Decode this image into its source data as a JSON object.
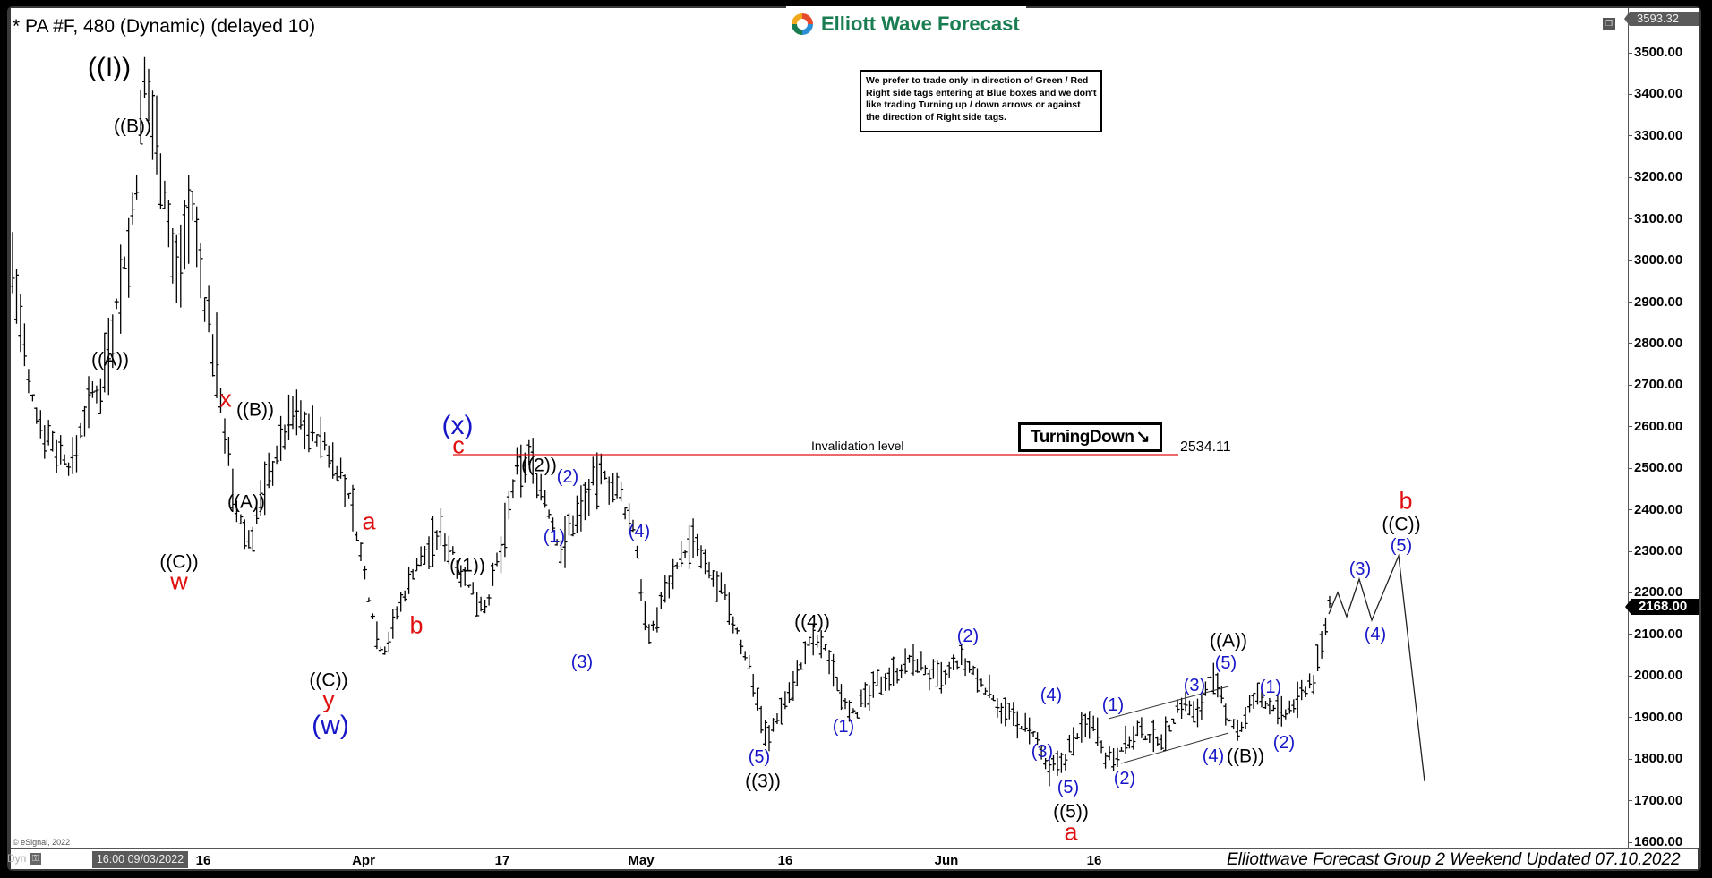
{
  "header": {
    "title": "* PA #F, 480 (Dynamic) (delayed 10)",
    "logo_text": "Elliott Wave Forecast"
  },
  "note_box": {
    "lines": [
      "We prefer to trade only in direction of Green / Red",
      "Right side tags entering at Blue boxes and we don't",
      "like trading Turning up / down arrows or against",
      "the direction of Right side tags."
    ]
  },
  "turning_badge": {
    "label": "TurningDown",
    "arrow": "↘"
  },
  "invalidation": {
    "label": "Invalidation level",
    "value": "2534.11",
    "color": "#e01010"
  },
  "price_axis": {
    "top_price": "3593.32",
    "last_price": "2168.00",
    "ticks": [
      "3500.00",
      "3400.00",
      "3300.00",
      "3200.00",
      "3100.00",
      "3000.00",
      "2900.00",
      "2800.00",
      "2700.00",
      "2600.00",
      "2500.00",
      "2400.00",
      "2300.00",
      "2200.00",
      "2100.00",
      "2000.00",
      "1900.00",
      "1800.00",
      "1700.00",
      "1600.00"
    ]
  },
  "time_axis": {
    "cursor_label": "16:00 09/03/2022",
    "ticks": [
      "16",
      "Apr",
      "17",
      "May",
      "16",
      "Jun",
      "16"
    ]
  },
  "status": {
    "dyn": "Dyn",
    "lock_icon": "lock-icon",
    "copyright": "© eSignal, 2022"
  },
  "footer": {
    "text": "Elliottwave Forecast Group 2 Weekend Updated 07.10.2022"
  },
  "colors": {
    "black_labels": "#000000",
    "blue_labels": "#1616c8",
    "red_labels": "#e01010",
    "logo_green": "#1a7d52"
  },
  "chart_data": {
    "type": "ohlc-bar",
    "title": "* PA #F, 480 (Dynamic) (delayed 10)",
    "instrument": "PA #F",
    "interval": "480",
    "xlabel": "",
    "ylabel": "",
    "ylim": [
      1600,
      3593.32
    ],
    "x_ticks": [
      "16 (Mar)",
      "Apr",
      "17 (Apr)",
      "May",
      "16 (May)",
      "Jun",
      "16 (Jun)"
    ],
    "grid": false,
    "last_price": 2168.0,
    "invalidation_level": 2534.11,
    "wave_labels": [
      {
        "label": "((I))",
        "color": "black",
        "price": 3430
      },
      {
        "label": "((B))",
        "color": "black",
        "price": 3290
      },
      {
        "label": "((A))",
        "color": "black",
        "price": 2790
      },
      {
        "label": "((C))",
        "color": "black",
        "price": 2310
      },
      {
        "label": "w",
        "color": "red",
        "price": 2310
      },
      {
        "label": "x",
        "color": "red",
        "price": 2640
      },
      {
        "label": "((B))",
        "color": "black",
        "price": 2610
      },
      {
        "label": "((A))",
        "color": "black",
        "price": 2450
      },
      {
        "label": "((C))",
        "color": "black",
        "price": 2050
      },
      {
        "label": "y",
        "color": "red",
        "price": 2050
      },
      {
        "label": "(w)",
        "color": "blue",
        "price": 2050
      },
      {
        "label": "a",
        "color": "red",
        "price": 2345
      },
      {
        "label": "b",
        "color": "red",
        "price": 2170
      },
      {
        "label": "c",
        "color": "red",
        "price": 2534
      },
      {
        "label": "(x)",
        "color": "blue",
        "price": 2534
      },
      {
        "label": "((1))",
        "color": "black",
        "price": 2300
      },
      {
        "label": "((2))",
        "color": "black",
        "price": 2490
      },
      {
        "label": "(1)",
        "color": "blue",
        "price": 2400
      },
      {
        "label": "(2)",
        "color": "blue",
        "price": 2460
      },
      {
        "label": "(3)",
        "color": "blue",
        "price": 2060
      },
      {
        "label": "(4)",
        "color": "blue",
        "price": 2320
      },
      {
        "label": "(5)",
        "color": "blue",
        "price": 1840
      },
      {
        "label": "((3))",
        "color": "black",
        "price": 1840
      },
      {
        "label": "((4))",
        "color": "black",
        "price": 2100
      },
      {
        "label": "(1)",
        "color": "blue",
        "price": 1910
      },
      {
        "label": "(2)",
        "color": "blue",
        "price": 2060
      },
      {
        "label": "(3)",
        "color": "blue",
        "price": 1880
      },
      {
        "label": "(4)",
        "color": "blue",
        "price": 1960
      },
      {
        "label": "(5)",
        "color": "blue",
        "price": 1760
      },
      {
        "label": "((5))",
        "color": "black",
        "price": 1760
      },
      {
        "label": "a",
        "color": "red",
        "price": 1760
      },
      {
        "label": "(1)",
        "color": "blue",
        "price": 1900
      },
      {
        "label": "(2)",
        "color": "blue",
        "price": 1790
      },
      {
        "label": "(3)",
        "color": "blue",
        "price": 1940
      },
      {
        "label": "(4)",
        "color": "blue",
        "price": 1840
      },
      {
        "label": "(5)",
        "color": "blue",
        "price": 2010
      },
      {
        "label": "((A))",
        "color": "black",
        "price": 2010
      },
      {
        "label": "((B))",
        "color": "black",
        "price": 1850
      },
      {
        "label": "(1)",
        "color": "blue",
        "price": 1950
      },
      {
        "label": "(2)",
        "color": "blue",
        "price": 1880
      },
      {
        "label": "(3)",
        "color": "blue",
        "price": 2230
      },
      {
        "label": "(4)",
        "color": "blue",
        "price": 2140
      },
      {
        "label": "(5)",
        "color": "blue",
        "price": 2290
      },
      {
        "label": "((C))",
        "color": "black",
        "price": 2290
      },
      {
        "label": "b",
        "color": "red",
        "price": 2290
      }
    ],
    "projection_path": [
      {
        "step": "start",
        "price": 2168
      },
      {
        "step": "(3)",
        "price": 2230
      },
      {
        "step": "(4)",
        "price": 2140
      },
      {
        "step": "(5) / ((C)) / b",
        "price": 2290
      },
      {
        "step": "end",
        "price": 1750
      }
    ],
    "price_series_approx": [
      3000,
      2700,
      2600,
      2550,
      2500,
      2650,
      2700,
      2900,
      3050,
      3430,
      3250,
      2950,
      3150,
      2900,
      2700,
      2400,
      2320,
      2450,
      2550,
      2640,
      2600,
      2560,
      2500,
      2400,
      2200,
      2050,
      2150,
      2250,
      2300,
      2345,
      2280,
      2200,
      2170,
      2300,
      2480,
      2534,
      2420,
      2300,
      2380,
      2450,
      2490,
      2430,
      2350,
      2080,
      2200,
      2280,
      2320,
      2250,
      2200,
      2100,
      2000,
      1840,
      1930,
      2000,
      2090,
      2060,
      1960,
      1910,
      1960,
      2000,
      2020,
      2040,
      2000,
      1990,
      2040,
      2000,
      1960,
      1920,
      1880,
      1860,
      1760,
      1800,
      1860,
      1900,
      1800,
      1830,
      1860,
      1850,
      1860,
      1940,
      1900,
      2010,
      1900,
      1870,
      1950,
      1930,
      1900,
      1950,
      2000,
      2168
    ]
  }
}
